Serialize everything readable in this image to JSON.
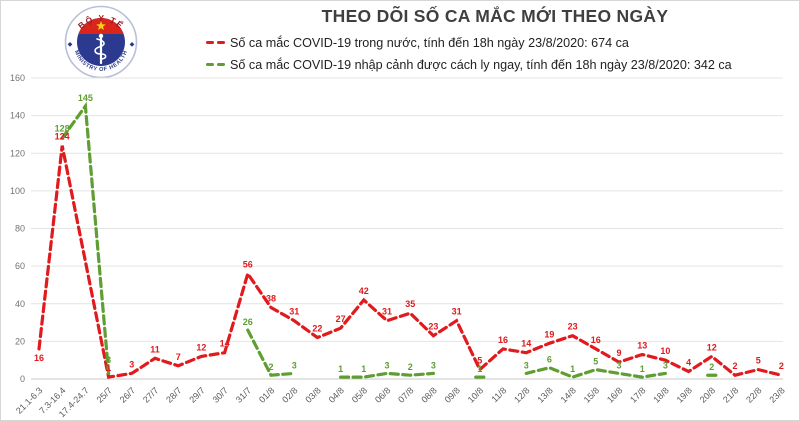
{
  "header": {
    "title": "THEO DÕI SỐ CA MẮC MỚI THEO NGÀY",
    "legend": [
      {
        "label": "Số ca mắc COVID-19 trong nước, tính đến 18h ngày 23/8/2020: 674 ca",
        "color": "#e01a1d"
      },
      {
        "label": "Số ca mắc COVID-19 nhập cảnh được cách ly ngay, tính đến 18h ngày 23/8/2020: 342 ca",
        "color": "#5f9e32"
      }
    ]
  },
  "logo": {
    "top_text": "BỘ Y TẾ",
    "bottom_text": "MINISTRY OF HEALTH",
    "colors": {
      "navy": "#2b3a8f",
      "red": "#d9251c",
      "star": "#f5d312",
      "ring_edge": "#b9c0d8",
      "arc_text_red": "#9b1b1f"
    }
  },
  "chart_data": {
    "type": "line",
    "title": "THEO DÕI SỐ CA MẮC MỚI THEO NGÀY",
    "categories": [
      "21.1-6.3",
      "7.3-16.4",
      "17.4-24.7",
      "25/7",
      "26/7",
      "27/7",
      "28/7",
      "29/7",
      "30/7",
      "31/7",
      "01/8",
      "02/8",
      "03/8",
      "04/8",
      "05/8",
      "06/8",
      "07/8",
      "08/8",
      "09/8",
      "10/8",
      "11/8",
      "12/8",
      "13/8",
      "14/8",
      "15/8",
      "16/8",
      "17/8",
      "18/8",
      "19/8",
      "20/8",
      "21/8",
      "22/8",
      "23/8"
    ],
    "series": [
      {
        "name": "Số ca mắc COVID-19 trong nước",
        "color": "#e01a1d",
        "connect_gaps": true,
        "total": 674,
        "values": [
          16,
          124,
          null,
          1,
          3,
          11,
          7,
          12,
          14,
          56,
          38,
          31,
          22,
          27,
          42,
          31,
          35,
          23,
          31,
          5,
          16,
          14,
          19,
          23,
          16,
          9,
          13,
          10,
          4,
          12,
          2,
          5,
          2
        ]
      },
      {
        "name": "Số ca mắc COVID-19 nhập cảnh được cách ly ngay",
        "color": "#5f9e32",
        "connect_gaps": false,
        "total": 342,
        "values": [
          null,
          128,
          145,
          3,
          null,
          null,
          null,
          null,
          null,
          26,
          2,
          3,
          null,
          1,
          1,
          3,
          2,
          3,
          null,
          1,
          null,
          3,
          6,
          1,
          5,
          3,
          1,
          3,
          null,
          2,
          null,
          null,
          null
        ]
      }
    ],
    "ylim": [
      0,
      160
    ],
    "yticks": [
      0,
      20,
      40,
      60,
      80,
      100,
      120,
      140,
      160
    ],
    "grid": true,
    "line_style": "dashed",
    "legend_position": "top",
    "axis_color": "#595959",
    "grid_color": "#e4e4e4"
  }
}
